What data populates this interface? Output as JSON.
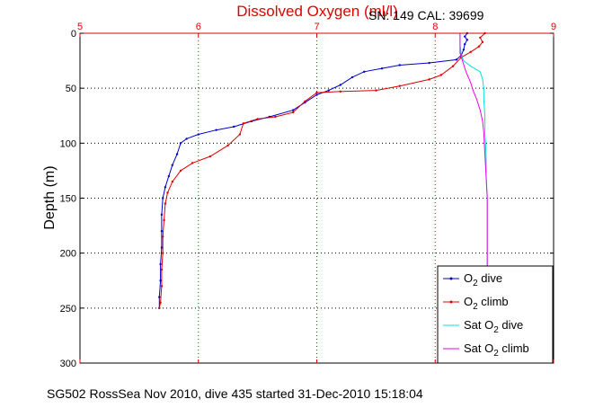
{
  "chart_data": {
    "type": "line",
    "title": "Dissolved Oxygen (ml/l)",
    "annotation": "SN: 149  CAL: 39699",
    "ylabel": "Depth (m)",
    "footer": "SG502 RossSea Nov 2010, dive 435 started 31-Dec-2010 15:18:04",
    "xlim": [
      5,
      9
    ],
    "ylim": [
      0,
      300
    ],
    "y_reversed": true,
    "x_axis_position": "top",
    "x_ticks": [
      5,
      6,
      7,
      8,
      9
    ],
    "y_ticks": [
      0,
      50,
      100,
      150,
      200,
      250,
      300
    ],
    "grid": true,
    "legend_position": "bottom-right",
    "series": [
      {
        "name": "O2 dive",
        "legend_main": "O",
        "legend_sub": "2",
        "legend_rest": " dive",
        "color": "#0000cc",
        "marker": "dot",
        "points": [
          [
            8.27,
            0
          ],
          [
            8.25,
            3
          ],
          [
            8.27,
            6
          ],
          [
            8.25,
            10
          ],
          [
            8.24,
            15
          ],
          [
            8.22,
            20
          ],
          [
            8.18,
            24
          ],
          [
            7.95,
            27
          ],
          [
            7.7,
            29
          ],
          [
            7.55,
            32
          ],
          [
            7.4,
            35
          ],
          [
            7.3,
            40
          ],
          [
            7.2,
            47
          ],
          [
            7.1,
            52
          ],
          [
            7.0,
            56
          ],
          [
            6.9,
            63
          ],
          [
            6.8,
            70
          ],
          [
            6.6,
            76
          ],
          [
            6.45,
            80
          ],
          [
            6.3,
            85
          ],
          [
            6.15,
            88
          ],
          [
            6.0,
            92
          ],
          [
            5.9,
            96
          ],
          [
            5.85,
            100
          ],
          [
            5.82,
            110
          ],
          [
            5.78,
            120
          ],
          [
            5.75,
            130
          ],
          [
            5.72,
            140
          ],
          [
            5.7,
            150
          ],
          [
            5.69,
            165
          ],
          [
            5.69,
            180
          ],
          [
            5.69,
            195
          ],
          [
            5.68,
            210
          ],
          [
            5.68,
            225
          ],
          [
            5.67,
            240
          ],
          [
            5.67,
            250
          ]
        ]
      },
      {
        "name": "O2 climb",
        "legend_main": "O",
        "legend_sub": "2",
        "legend_rest": " climb",
        "color": "#dd0000",
        "marker": "dot",
        "points": [
          [
            8.42,
            0
          ],
          [
            8.38,
            4
          ],
          [
            8.4,
            8
          ],
          [
            8.37,
            12
          ],
          [
            8.3,
            17
          ],
          [
            8.22,
            22
          ],
          [
            8.15,
            30
          ],
          [
            8.05,
            38
          ],
          [
            7.95,
            42
          ],
          [
            7.7,
            48
          ],
          [
            7.5,
            52
          ],
          [
            7.2,
            53
          ],
          [
            7.0,
            54
          ],
          [
            6.9,
            62
          ],
          [
            6.8,
            72
          ],
          [
            6.65,
            76
          ],
          [
            6.5,
            78
          ],
          [
            6.38,
            82
          ],
          [
            6.35,
            92
          ],
          [
            6.25,
            102
          ],
          [
            6.1,
            112
          ],
          [
            5.95,
            118
          ],
          [
            5.85,
            125
          ],
          [
            5.78,
            135
          ],
          [
            5.74,
            145
          ],
          [
            5.72,
            155
          ],
          [
            5.71,
            170
          ],
          [
            5.7,
            185
          ],
          [
            5.7,
            200
          ],
          [
            5.69,
            215
          ],
          [
            5.69,
            230
          ],
          [
            5.68,
            245
          ],
          [
            5.67,
            250
          ]
        ]
      },
      {
        "name": "Sat O2 dive",
        "legend_main": "Sat O",
        "legend_sub": "2",
        "legend_rest": " dive",
        "color": "#00e0e0",
        "marker": "none",
        "points": [
          [
            8.21,
            0
          ],
          [
            8.21,
            10
          ],
          [
            8.22,
            20
          ],
          [
            8.24,
            25
          ],
          [
            8.3,
            30
          ],
          [
            8.38,
            35
          ],
          [
            8.4,
            42
          ],
          [
            8.41,
            50
          ],
          [
            8.41,
            60
          ],
          [
            8.42,
            75
          ],
          [
            8.42,
            90
          ],
          [
            8.43,
            110
          ],
          [
            8.43,
            130
          ],
          [
            8.44,
            150
          ],
          [
            8.44,
            200
          ],
          [
            8.44,
            250
          ]
        ]
      },
      {
        "name": "Sat O2 climb",
        "legend_main": "Sat O",
        "legend_sub": "2",
        "legend_rest": " climb",
        "color": "#ee00ee",
        "marker": "none",
        "points": [
          [
            8.21,
            0
          ],
          [
            8.21,
            10
          ],
          [
            8.21,
            18
          ],
          [
            8.23,
            25
          ],
          [
            8.26,
            35
          ],
          [
            8.3,
            45
          ],
          [
            8.32,
            52
          ],
          [
            8.35,
            60
          ],
          [
            8.38,
            70
          ],
          [
            8.4,
            80
          ],
          [
            8.41,
            90
          ],
          [
            8.42,
            110
          ],
          [
            8.43,
            130
          ],
          [
            8.44,
            150
          ],
          [
            8.44,
            200
          ],
          [
            8.44,
            250
          ]
        ]
      }
    ]
  }
}
